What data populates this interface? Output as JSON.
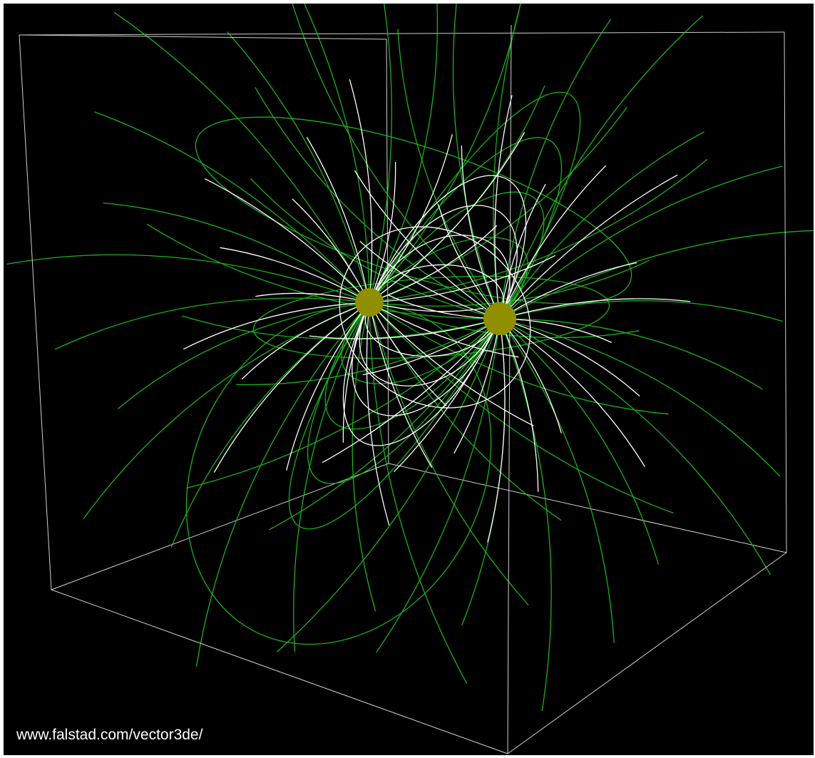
{
  "credit": "www.falstad.com/vector3de/",
  "colors": {
    "background": "#000000",
    "box_edges": "#cfcfcf",
    "field_line_primary": "#ffffff",
    "field_line_secondary": "#1fc41f",
    "charge": "#8f8f00"
  },
  "charges": [
    {
      "name": "charge-left"
    },
    {
      "name": "charge-right"
    }
  ]
}
